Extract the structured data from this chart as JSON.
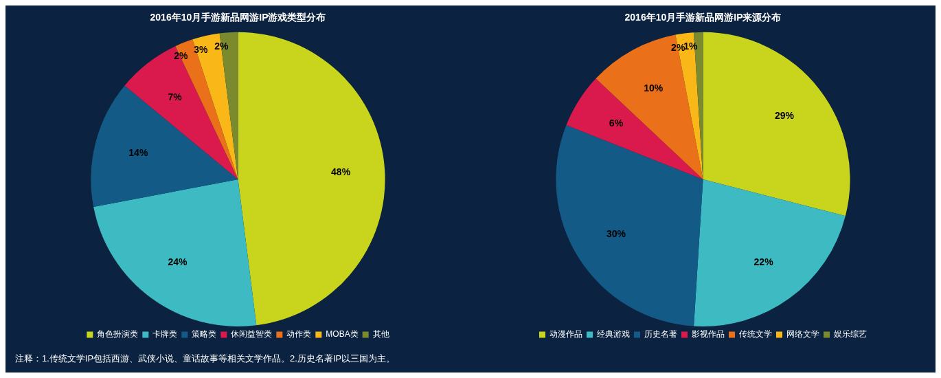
{
  "chart_data": [
    {
      "type": "pie",
      "title": "2016年10月手游新品网游IP游戏类型分布",
      "categories": [
        "角色扮演类",
        "卡牌类",
        "策略类",
        "休闲益智类",
        "动作类",
        "MOBA类",
        "其他"
      ],
      "values": [
        48,
        24,
        14,
        7,
        2,
        3,
        2
      ],
      "colors": [
        "#c9d41c",
        "#3dbac2",
        "#135b86",
        "#da1a4c",
        "#ea7019",
        "#f9b718",
        "#7b8a2c"
      ],
      "value_labels": [
        "48%",
        "24%",
        "14%",
        "7%",
        "2%",
        "3%",
        "2%"
      ],
      "legend": "bottom"
    },
    {
      "type": "pie",
      "title": "2016年10月手游新品网游IP来源分布",
      "categories": [
        "动漫作品",
        "经典游戏",
        "历史名著",
        "影视作品",
        "传统文学",
        "网络文学",
        "娱乐综艺"
      ],
      "values": [
        29,
        22,
        30,
        6,
        10,
        2,
        1
      ],
      "colors": [
        "#c9d41c",
        "#3dbac2",
        "#135b86",
        "#da1a4c",
        "#ea7019",
        "#f9b718",
        "#7b8a2c"
      ],
      "value_labels": [
        "29%",
        "22%",
        "30%",
        "6%",
        "10%",
        "2%",
        "1%"
      ],
      "legend": "bottom",
      "annotations": [
        "注释：1.传统文学IP包括西游、武侠小说、童话故事等相关文学作品。2.历史名著IP以三国为主。"
      ]
    }
  ]
}
